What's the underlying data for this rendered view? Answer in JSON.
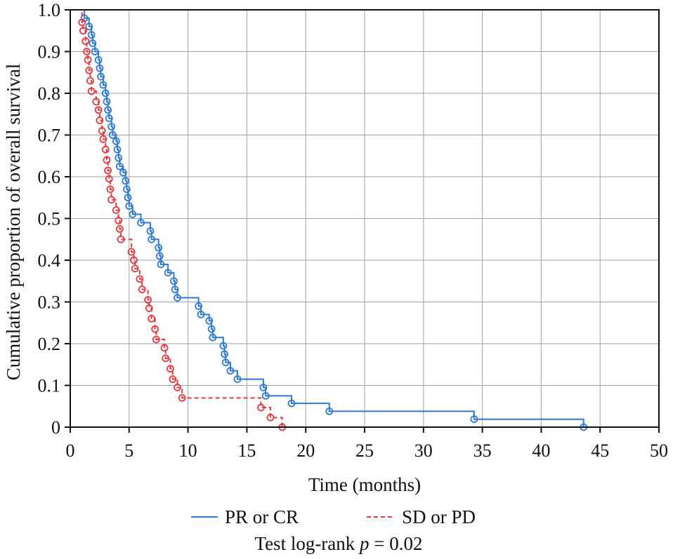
{
  "chart_data": {
    "type": "line",
    "subtype": "kaplan-meier step",
    "xlabel": "Time (months)",
    "ylabel": "Cumulative proportion of overall survival",
    "xlim": [
      0,
      50
    ],
    "ylim": [
      0,
      1.0
    ],
    "xticks": [
      "0",
      "5",
      "10",
      "15",
      "20",
      "25",
      "30",
      "35",
      "40",
      "45",
      "50"
    ],
    "yticks": [
      "0",
      "0.1",
      "0.2",
      "0.3",
      "0.4",
      "0.5",
      "0.6",
      "0.7",
      "0.8",
      "0.9",
      "1.0"
    ],
    "grid": true,
    "legend": "bottom",
    "annotation": {
      "prefix": "Test log-rank ",
      "variable": "p",
      "suffix": " = 0.02"
    },
    "series": [
      {
        "name": "PR or CR",
        "color": "#2e7bd6",
        "dash": "solid",
        "points": [
          [
            0,
            1.0
          ],
          [
            1.2,
            0.98
          ],
          [
            1.6,
            0.96
          ],
          [
            1.8,
            0.94
          ],
          [
            1.9,
            0.92
          ],
          [
            2.1,
            0.9
          ],
          [
            2.4,
            0.88
          ],
          [
            2.5,
            0.86
          ],
          [
            2.6,
            0.84
          ],
          [
            2.8,
            0.82
          ],
          [
            3.0,
            0.8
          ],
          [
            3.1,
            0.78
          ],
          [
            3.2,
            0.76
          ],
          [
            3.3,
            0.74
          ],
          [
            3.5,
            0.72
          ],
          [
            3.6,
            0.7
          ],
          [
            3.9,
            0.685
          ],
          [
            4.0,
            0.665
          ],
          [
            4.1,
            0.645
          ],
          [
            4.2,
            0.625
          ],
          [
            4.5,
            0.61
          ],
          [
            4.7,
            0.59
          ],
          [
            4.8,
            0.57
          ],
          [
            4.9,
            0.55
          ],
          [
            5.0,
            0.53
          ],
          [
            5.3,
            0.51
          ],
          [
            6.0,
            0.49
          ],
          [
            6.8,
            0.47
          ],
          [
            6.9,
            0.45
          ],
          [
            7.5,
            0.43
          ],
          [
            7.6,
            0.41
          ],
          [
            7.7,
            0.39
          ],
          [
            8.3,
            0.37
          ],
          [
            8.8,
            0.35
          ],
          [
            8.9,
            0.33
          ],
          [
            9.1,
            0.31
          ],
          [
            10.9,
            0.29
          ],
          [
            11.1,
            0.27
          ],
          [
            11.8,
            0.255
          ],
          [
            12.0,
            0.235
          ],
          [
            12.1,
            0.215
          ],
          [
            13.0,
            0.195
          ],
          [
            13.1,
            0.175
          ],
          [
            13.2,
            0.155
          ],
          [
            13.6,
            0.135
          ],
          [
            14.2,
            0.115
          ],
          [
            16.4,
            0.095
          ],
          [
            16.6,
            0.075
          ],
          [
            18.8,
            0.057
          ],
          [
            22.0,
            0.038
          ],
          [
            34.3,
            0.019
          ],
          [
            43.6,
            0.0
          ]
        ]
      },
      {
        "name": "SD or PD",
        "color": "#e8383d",
        "dash": "dashed",
        "points": [
          [
            0,
            1.0
          ],
          [
            1.0,
            0.97
          ],
          [
            1.1,
            0.95
          ],
          [
            1.3,
            0.925
          ],
          [
            1.4,
            0.9
          ],
          [
            1.5,
            0.88
          ],
          [
            1.6,
            0.855
          ],
          [
            1.7,
            0.83
          ],
          [
            1.8,
            0.805
          ],
          [
            2.2,
            0.78
          ],
          [
            2.4,
            0.76
          ],
          [
            2.5,
            0.735
          ],
          [
            2.7,
            0.71
          ],
          [
            2.8,
            0.69
          ],
          [
            3.0,
            0.665
          ],
          [
            3.1,
            0.64
          ],
          [
            3.2,
            0.615
          ],
          [
            3.3,
            0.595
          ],
          [
            3.4,
            0.57
          ],
          [
            3.5,
            0.545
          ],
          [
            3.9,
            0.52
          ],
          [
            4.1,
            0.495
          ],
          [
            4.2,
            0.475
          ],
          [
            4.3,
            0.45
          ],
          [
            5.2,
            0.42
          ],
          [
            5.4,
            0.4
          ],
          [
            5.5,
            0.38
          ],
          [
            5.9,
            0.355
          ],
          [
            6.1,
            0.33
          ],
          [
            6.6,
            0.305
          ],
          [
            6.7,
            0.285
          ],
          [
            6.9,
            0.26
          ],
          [
            7.2,
            0.235
          ],
          [
            7.3,
            0.21
          ],
          [
            8.0,
            0.19
          ],
          [
            8.1,
            0.165
          ],
          [
            8.5,
            0.14
          ],
          [
            8.7,
            0.115
          ],
          [
            9.1,
            0.095
          ],
          [
            9.5,
            0.07
          ],
          [
            16.2,
            0.047
          ],
          [
            17.0,
            0.023
          ],
          [
            18.0,
            0.0
          ]
        ]
      }
    ]
  }
}
